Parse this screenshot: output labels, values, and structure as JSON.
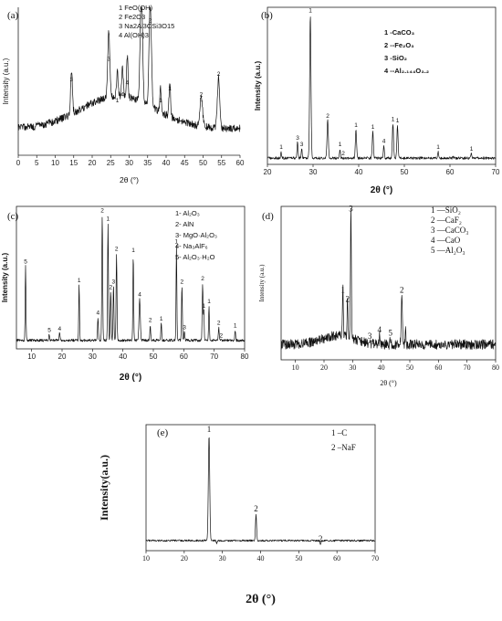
{
  "chart_data": [
    {
      "id": "a",
      "type": "line",
      "panel_label": "(a)",
      "xlabel": "2θ (°)",
      "ylabel": "Intensity (a.u.)",
      "xlim": [
        0,
        60
      ],
      "ylim": [
        0,
        100
      ],
      "xticks": [
        0,
        5,
        10,
        15,
        20,
        25,
        30,
        35,
        40,
        45,
        50,
        55,
        60
      ],
      "legend": [
        {
          "num": "1",
          "text": "FeO(OH)"
        },
        {
          "num": "2",
          "text": "Fe2O3"
        },
        {
          "num": "3",
          "text": "Na2Al3CSi3O15"
        },
        {
          "num": "4",
          "text": "Al(OH)3"
        }
      ],
      "baseline": 18,
      "noise": 2.5,
      "hump": {
        "center": 27,
        "width": 14,
        "height": 22
      },
      "peaks": [
        {
          "x": 14.4,
          "h": 48,
          "w": 0.35,
          "label": "3"
        },
        {
          "x": 24.5,
          "h": 62,
          "w": 0.4,
          "label": "3"
        },
        {
          "x": 26.8,
          "h": 34,
          "w": 0.3,
          "label": "1"
        },
        {
          "x": 28.2,
          "h": 38,
          "w": 0.3,
          "label": "4"
        },
        {
          "x": 29.5,
          "h": 46,
          "w": 0.3,
          "label": "4"
        },
        {
          "x": 33.3,
          "h": 95,
          "w": 0.45,
          "label": "2"
        },
        {
          "x": 35.7,
          "h": 88,
          "w": 0.45,
          "label": "2"
        },
        {
          "x": 38.5,
          "h": 34,
          "w": 0.3,
          "label": "1"
        },
        {
          "x": 41.0,
          "h": 42,
          "w": 0.3,
          "label": "1"
        },
        {
          "x": 49.5,
          "h": 38,
          "w": 0.5,
          "label": "2"
        },
        {
          "x": 54.2,
          "h": 52,
          "w": 0.45,
          "label": "2"
        }
      ]
    },
    {
      "id": "b",
      "type": "line",
      "panel_label": "(b)",
      "xlabel": "2θ (°)",
      "ylabel": "Intensity (a.u.)",
      "xlim": [
        20,
        70
      ],
      "ylim": [
        0,
        100
      ],
      "xticks": [
        20,
        30,
        40,
        50,
        60,
        70
      ],
      "legend": [
        {
          "num": "1",
          "text": "-CaCO₃"
        },
        {
          "num": "2",
          "text": "--Fe₂O₃"
        },
        {
          "num": "3",
          "text": "-SiO₂"
        },
        {
          "num": "4",
          "text": "--Al₂.₁₄₄O₃.₂"
        }
      ],
      "baseline": 4,
      "noise": 0.8,
      "peaks": [
        {
          "x": 23.0,
          "h": 8,
          "w": 0.15,
          "label": "1"
        },
        {
          "x": 26.6,
          "h": 14,
          "w": 0.15,
          "label": "3"
        },
        {
          "x": 27.5,
          "h": 10,
          "w": 0.15,
          "label": "3"
        },
        {
          "x": 29.4,
          "h": 95,
          "w": 0.2,
          "label": "1"
        },
        {
          "x": 33.2,
          "h": 28,
          "w": 0.2,
          "label": "2"
        },
        {
          "x": 35.9,
          "h": 10,
          "w": 0.15,
          "label": "1"
        },
        {
          "x": 36.6,
          "h": 4,
          "w": 0.15,
          "label": "2"
        },
        {
          "x": 39.4,
          "h": 22,
          "w": 0.18,
          "label": "1"
        },
        {
          "x": 43.1,
          "h": 21,
          "w": 0.18,
          "label": "1"
        },
        {
          "x": 45.5,
          "h": 12,
          "w": 0.15,
          "label": "4"
        },
        {
          "x": 47.5,
          "h": 26,
          "w": 0.18,
          "label": "1"
        },
        {
          "x": 48.5,
          "h": 25,
          "w": 0.18,
          "label": "1"
        },
        {
          "x": 57.4,
          "h": 8,
          "w": 0.15,
          "label": "1"
        },
        {
          "x": 60.7,
          "h": 5,
          "w": 0.15,
          "label": ""
        },
        {
          "x": 64.7,
          "h": 7,
          "w": 0.15,
          "label": "1"
        }
      ]
    },
    {
      "id": "c",
      "type": "line",
      "panel_label": "(c)",
      "xlabel": "2θ (°)",
      "ylabel": "Intensity (a.u.)",
      "xlim": [
        5,
        80
      ],
      "ylim": [
        0,
        100
      ],
      "xticks": [
        10,
        20,
        30,
        40,
        50,
        60,
        70,
        80
      ],
      "legend": [
        {
          "num": "1-",
          "text": "Al₂O₃"
        },
        {
          "num": "2-",
          "text": "AlN"
        },
        {
          "num": "3-",
          "text": "MgO·Al₂O₃"
        },
        {
          "num": "4-",
          "text": "Na₃AlF₆"
        },
        {
          "num": "5-",
          "text": "Al₂O₃·H₂O"
        }
      ],
      "baseline": 6,
      "noise": 0.9,
      "peaks": [
        {
          "x": 8.0,
          "h": 58,
          "w": 0.18,
          "label": "5"
        },
        {
          "x": 15.8,
          "h": 10,
          "w": 0.2,
          "label": "5"
        },
        {
          "x": 19.2,
          "h": 11,
          "w": 0.2,
          "label": "4"
        },
        {
          "x": 25.6,
          "h": 45,
          "w": 0.18,
          "label": "1"
        },
        {
          "x": 31.8,
          "h": 22,
          "w": 0.2,
          "label": "4"
        },
        {
          "x": 33.2,
          "h": 94,
          "w": 0.2,
          "label": "2"
        },
        {
          "x": 35.1,
          "h": 88,
          "w": 0.2,
          "label": "1"
        },
        {
          "x": 36.0,
          "h": 40,
          "w": 0.2,
          "label": "2"
        },
        {
          "x": 36.9,
          "h": 44,
          "w": 0.2,
          "label": "3"
        },
        {
          "x": 37.9,
          "h": 67,
          "w": 0.2,
          "label": "2"
        },
        {
          "x": 43.4,
          "h": 66,
          "w": 0.18,
          "label": "1"
        },
        {
          "x": 45.5,
          "h": 35,
          "w": 0.3,
          "label": "4"
        },
        {
          "x": 49.0,
          "h": 17,
          "w": 0.18,
          "label": "2"
        },
        {
          "x": 52.6,
          "h": 18,
          "w": 0.18,
          "label": "1"
        },
        {
          "x": 57.6,
          "h": 72,
          "w": 0.18,
          "label": "1"
        },
        {
          "x": 59.4,
          "h": 44,
          "w": 0.2,
          "label": "2"
        },
        {
          "x": 60.2,
          "h": 12,
          "w": 0.2,
          "label": "3"
        },
        {
          "x": 66.2,
          "h": 46,
          "w": 0.2,
          "label": "2"
        },
        {
          "x": 66.6,
          "h": 27,
          "w": 0.15,
          "label": "1"
        },
        {
          "x": 68.3,
          "h": 30,
          "w": 0.18,
          "label": "1"
        },
        {
          "x": 71.5,
          "h": 15,
          "w": 0.18,
          "label": "2"
        },
        {
          "x": 72.3,
          "h": 6,
          "w": 0.15,
          "label": "2"
        },
        {
          "x": 76.9,
          "h": 13,
          "w": 0.18,
          "label": "1"
        }
      ]
    },
    {
      "id": "d",
      "type": "line",
      "panel_label": "(d)",
      "xlabel": "2θ (°)",
      "ylabel": "Intensity (a.u.)",
      "xlim": [
        5,
        80
      ],
      "ylim": [
        0,
        100
      ],
      "xticks": [
        10,
        20,
        30,
        40,
        50,
        60,
        70,
        80
      ],
      "legend": [
        {
          "num": "1",
          "text": "—SiO₂"
        },
        {
          "num": "2",
          "text": "—CaF₂"
        },
        {
          "num": "3",
          "text": "—CaCO₃"
        },
        {
          "num": "4",
          "text": "—CaO"
        },
        {
          "num": "5",
          "text": "—Al₂O₃"
        }
      ],
      "baseline": 10,
      "noise": 3.2,
      "hump": {
        "center": 25,
        "width": 8,
        "height": 6
      },
      "peaks": [
        {
          "x": 26.6,
          "h": 42,
          "w": 0.2,
          "label": "1"
        },
        {
          "x": 28.2,
          "h": 36,
          "w": 0.2,
          "label": "2"
        },
        {
          "x": 29.4,
          "h": 95,
          "w": 0.22,
          "label": "3"
        },
        {
          "x": 36.0,
          "h": 12,
          "w": 0.2,
          "label": "3"
        },
        {
          "x": 39.4,
          "h": 16,
          "w": 0.2,
          "label": "4"
        },
        {
          "x": 43.2,
          "h": 14,
          "w": 0.2,
          "label": "5"
        },
        {
          "x": 47.2,
          "h": 42,
          "w": 0.3,
          "label": "2"
        },
        {
          "x": 48.5,
          "h": 20,
          "w": 0.2,
          "label": ""
        },
        {
          "x": 56.5,
          "h": 12,
          "w": 0.2,
          "label": ""
        }
      ]
    },
    {
      "id": "e",
      "type": "line",
      "panel_label": "(e)",
      "xlabel": "2θ (°)",
      "ylabel": "Intensity(a.u.)",
      "xlim": [
        10,
        70
      ],
      "ylim": [
        0,
        100
      ],
      "xticks": [
        10,
        20,
        30,
        40,
        50,
        60,
        70
      ],
      "legend": [
        {
          "num": "1",
          "text": "–C"
        },
        {
          "num": "2",
          "text": "–NaF"
        }
      ],
      "baseline": 8,
      "noise": 0.7,
      "peaks": [
        {
          "x": 26.5,
          "h": 92,
          "w": 0.25,
          "label": "1"
        },
        {
          "x": 28.5,
          "h": 6,
          "w": 0.2,
          "label": ""
        },
        {
          "x": 38.8,
          "h": 29,
          "w": 0.2,
          "label": "2"
        },
        {
          "x": 46.9,
          "h": 8,
          "w": 0.2,
          "label": ""
        },
        {
          "x": 55.7,
          "h": 5,
          "w": 0.2,
          "label": "2"
        }
      ]
    }
  ]
}
